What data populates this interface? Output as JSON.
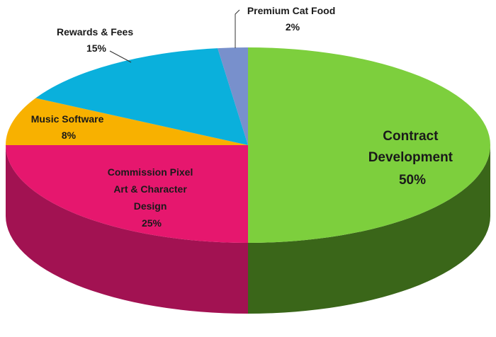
{
  "chart_data": {
    "type": "pie",
    "title": "",
    "slices": [
      {
        "name": "Contract Development",
        "value": 50,
        "label_lines": [
          "Contract",
          "Development",
          "50%"
        ],
        "color": "#7dcf3d",
        "side_color": "#3f6f1c"
      },
      {
        "name": "Commission Pixel Art & Character Design",
        "value": 25,
        "label_lines": [
          "Commission Pixel",
          "Art & Character",
          "Design",
          "25%"
        ],
        "color": "#e6176e",
        "side_color": "#b0145a"
      },
      {
        "name": "Music Software",
        "value": 8,
        "label_lines": [
          "Music Software",
          "8%"
        ],
        "color": "#f8b100",
        "side_color": "#b08000"
      },
      {
        "name": "Rewards & Fees",
        "value": 15,
        "label_lines": [
          "Rewards & Fees",
          "15%"
        ],
        "color": "#0ab0dc",
        "side_color": "#0a7fa0"
      },
      {
        "name": "Premium Cat Food",
        "value": 2,
        "label_lines": [
          "Premium Cat Food",
          "2%"
        ],
        "color": "#7890cc",
        "side_color": "#53659a"
      }
    ],
    "start_angle_deg": 0,
    "direction": "clockwise-from-top",
    "style": "3d-tilted"
  }
}
